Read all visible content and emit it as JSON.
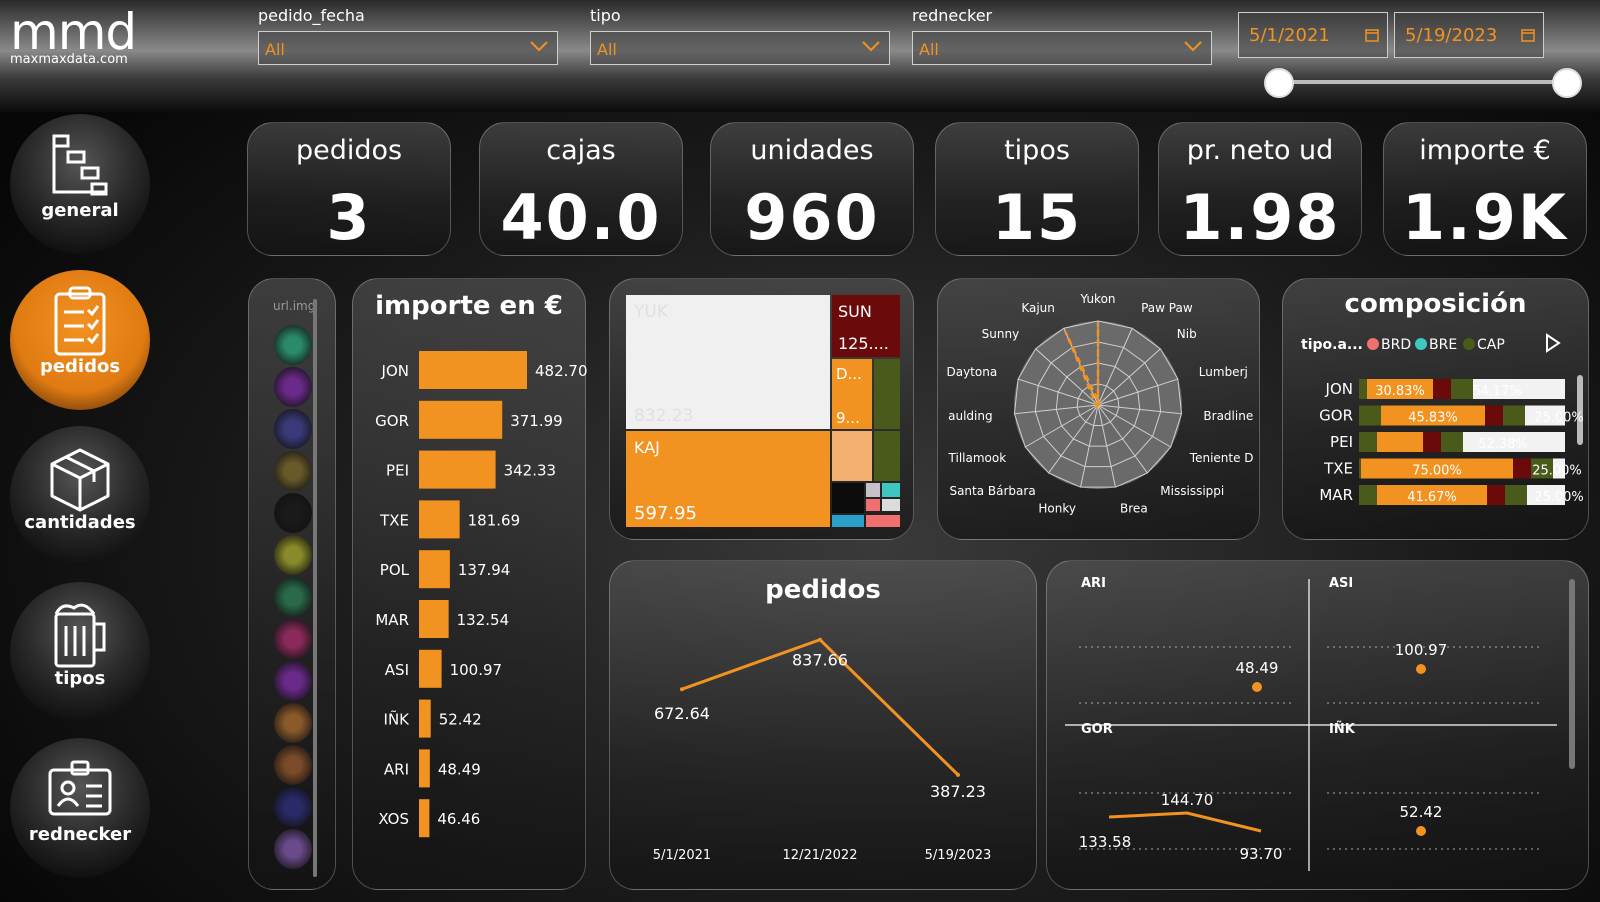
{
  "logo": {
    "name": "mmd",
    "site": "maxmaxdata.com"
  },
  "filters": [
    {
      "label": "pedido_fecha",
      "value": "All"
    },
    {
      "label": "tipo",
      "value": "All"
    },
    {
      "label": "rednecker",
      "value": "All"
    }
  ],
  "date_range": {
    "start": "5/1/2021",
    "end": "5/19/2023"
  },
  "nav": {
    "general": "general",
    "pedidos": "pedidos",
    "cantidades": "cantidades",
    "tipos": "tipos",
    "rednecker": "rednecker"
  },
  "kpis": [
    {
      "title": "pedidos",
      "value": "3"
    },
    {
      "title": "cajas",
      "value": "40.0"
    },
    {
      "title": "unidades",
      "value": "960"
    },
    {
      "title": "tipos",
      "value": "15"
    },
    {
      "title": "pr. neto ud",
      "value": "1.98"
    },
    {
      "title": "importe €",
      "value": "1.9K"
    }
  ],
  "image_list": {
    "header": "url.img"
  },
  "colors": {
    "accent": "#f29221",
    "dark_red": "#6b0a0a",
    "olive": "#4a5a1a",
    "light": "#f0f0f0",
    "teal": "#3ec6c0"
  },
  "chart_data": [
    {
      "type": "bar",
      "title": "importe en €",
      "categories": [
        "JON",
        "GOR",
        "PEI",
        "TXE",
        "POL",
        "MAR",
        "ASI",
        "IÑK",
        "ARI",
        "XOS"
      ],
      "values": [
        482.7,
        371.99,
        342.33,
        181.69,
        137.94,
        132.54,
        100.97,
        52.42,
        48.49,
        46.46
      ],
      "labels": [
        "482.70",
        "371.99",
        "342.33",
        "181.69",
        "137.94",
        "132.54",
        "100.97",
        "52.42",
        "48.49",
        "46.46"
      ]
    },
    {
      "type": "treemap",
      "tiles": [
        {
          "name": "YUK",
          "value": 832.23,
          "label": "832.23"
        },
        {
          "name": "KAJ",
          "value": 597.95,
          "label": "597.95"
        },
        {
          "name": "SUN",
          "value": 125,
          "label": "125...."
        },
        {
          "name": "D...",
          "value": 90,
          "label": "9..."
        }
      ]
    },
    {
      "type": "radar",
      "axes": [
        "Yukon",
        "Paw Paw",
        "Nib",
        "Lumberj",
        "Bradline",
        "Teniente D",
        "Mississippi",
        "Brea",
        "Honky",
        "Santa Bárbara",
        "Tillamook",
        "aulding",
        "Daytona",
        "Sunny",
        "Kajun"
      ]
    },
    {
      "type": "stacked_bar",
      "title": "composición",
      "legend_title": "tipo.a...",
      "legend": [
        {
          "name": "BRD",
          "color": "#f07070"
        },
        {
          "name": "BRE",
          "color": "#3ec6c0"
        },
        {
          "name": "CAP",
          "color": "#4a5a1a"
        }
      ],
      "categories": [
        "JON",
        "GOR",
        "PEI",
        "TXE",
        "MAR"
      ],
      "main_labels": [
        "30.83%",
        "45.83%",
        "",
        "75.00%",
        "41.67%"
      ],
      "right_labels": [
        "54.17%",
        "25.00%",
        "52.38%",
        "25.00%",
        "25.00%"
      ]
    },
    {
      "type": "line",
      "title": "pedidos",
      "x": [
        "5/1/2021",
        "12/21/2022",
        "5/19/2023"
      ],
      "values": [
        672.64,
        837.66,
        387.23
      ],
      "labels": [
        "672.64",
        "837.66",
        "387.23"
      ]
    },
    {
      "type": "small_multiples",
      "panels": [
        {
          "name": "ARI",
          "values": [
            48.49
          ],
          "labels": [
            "48.49"
          ]
        },
        {
          "name": "ASI",
          "values": [
            100.97
          ],
          "labels": [
            "100.97"
          ]
        },
        {
          "name": "GOR",
          "values": [
            133.58,
            144.7,
            93.7
          ],
          "labels": [
            "133.58",
            "144.70",
            "93.70"
          ]
        },
        {
          "name": "IÑK",
          "values": [
            52.42
          ],
          "labels": [
            "52.42"
          ]
        }
      ]
    }
  ]
}
